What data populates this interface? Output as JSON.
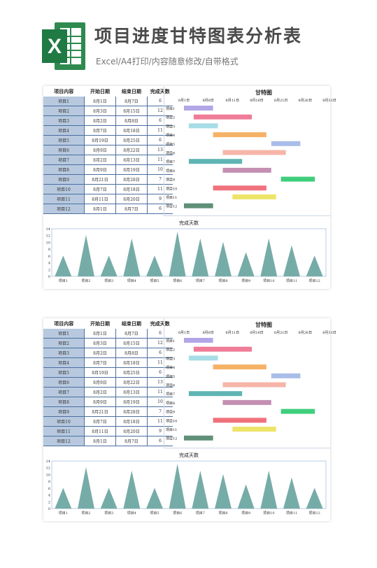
{
  "header": {
    "title": "项目进度甘特图表分析表",
    "subtitle": "Excel/A4打印/内容随意修改/自带格式",
    "logo_letter": "X"
  },
  "table": {
    "columns": [
      "项目内容",
      "开始日期",
      "结束日期",
      "完成天数"
    ],
    "rows": [
      [
        "项目1",
        "8月1日",
        "8月7日",
        "6"
      ],
      [
        "项目2",
        "8月3日",
        "8月15日",
        "12"
      ],
      [
        "项目3",
        "8月2日",
        "8月8日",
        "6"
      ],
      [
        "项目4",
        "8月7日",
        "8月18日",
        "11"
      ],
      [
        "项目5",
        "8月19日",
        "8月25日",
        "6"
      ],
      [
        "项目6",
        "8月9日",
        "8月22日",
        "13"
      ],
      [
        "项目7",
        "8月2日",
        "8月13日",
        "11"
      ],
      [
        "项目8",
        "8月9日",
        "8月19日",
        "10"
      ],
      [
        "项目9",
        "8月21日",
        "8月28日",
        "7"
      ],
      [
        "项目10",
        "8月7日",
        "8月18日",
        "11"
      ],
      [
        "项目11",
        "8月11日",
        "8月20日",
        "9"
      ],
      [
        "项目12",
        "8月1日",
        "8月7日",
        "6"
      ]
    ]
  },
  "chart_data": [
    {
      "type": "bar",
      "title": "甘特图",
      "x_ticks": [
        "8月1日",
        "8月6日",
        "8月11日",
        "8月16日",
        "8月21日",
        "8月26日",
        "8月31日"
      ],
      "xlim": [
        1,
        31
      ],
      "categories": [
        "项目1",
        "项目2",
        "项目3",
        "项目4",
        "项目5",
        "项目6",
        "项目7",
        "项目8",
        "项目9",
        "项目10",
        "项目11",
        "项目12"
      ],
      "start": [
        1,
        3,
        2,
        7,
        19,
        9,
        2,
        9,
        21,
        7,
        11,
        1
      ],
      "end": [
        7,
        15,
        8,
        18,
        25,
        22,
        13,
        19,
        28,
        18,
        20,
        7
      ],
      "colors": [
        "#b3a6e6",
        "#f07c98",
        "#a6dde6",
        "#f5b266",
        "#a9bde8",
        "#f6b5a8",
        "#5fb5b3",
        "#c48fb3",
        "#3fcf7c",
        "#f0727c",
        "#eee46a",
        "#5f8f78"
      ]
    },
    {
      "type": "area",
      "title": "完成天数",
      "categories": [
        "项目1",
        "项目2",
        "项目3",
        "项目4",
        "项目5",
        "项目6",
        "项目7",
        "项目8",
        "项目9",
        "项目10",
        "项目11",
        "项目12"
      ],
      "values": [
        6,
        12,
        6,
        11,
        6,
        13,
        11,
        10,
        7,
        11,
        9,
        6
      ],
      "ylim": [
        0,
        14
      ],
      "y_ticks": [
        0,
        2,
        4,
        6,
        8,
        10,
        12,
        14
      ],
      "color": "#5e9e98"
    }
  ]
}
